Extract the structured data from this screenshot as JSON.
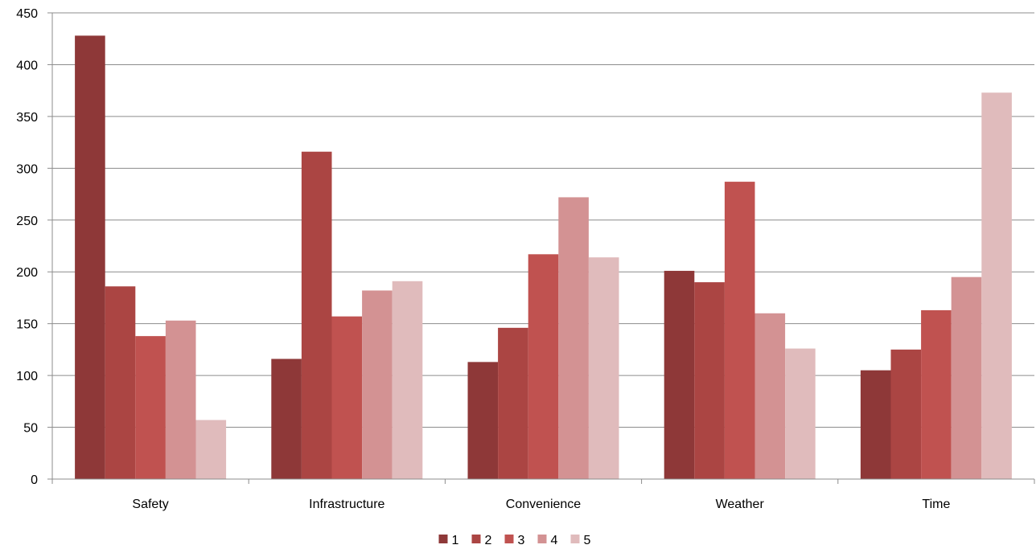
{
  "chart_data": {
    "type": "bar",
    "categories": [
      "Safety",
      "Infrastructure",
      "Convenience",
      "Weather",
      "Time"
    ],
    "series": [
      {
        "name": "1",
        "color": "#8e3838",
        "values": [
          428,
          116,
          113,
          201,
          105
        ]
      },
      {
        "name": "2",
        "color": "#ab4543",
        "values": [
          186,
          316,
          146,
          190,
          125
        ]
      },
      {
        "name": "3",
        "color": "#c05250",
        "values": [
          138,
          157,
          217,
          287,
          163
        ]
      },
      {
        "name": "4",
        "color": "#d39293",
        "values": [
          153,
          182,
          272,
          160,
          195
        ]
      },
      {
        "name": "5",
        "color": "#e0bbbc",
        "values": [
          57,
          191,
          214,
          126,
          373
        ]
      }
    ],
    "title": "",
    "xlabel": "",
    "ylabel": "",
    "ylim": [
      0,
      450
    ],
    "yticks": [
      0,
      50,
      100,
      150,
      200,
      250,
      300,
      350,
      400,
      450
    ],
    "grid": true,
    "legend_position": "bottom"
  }
}
